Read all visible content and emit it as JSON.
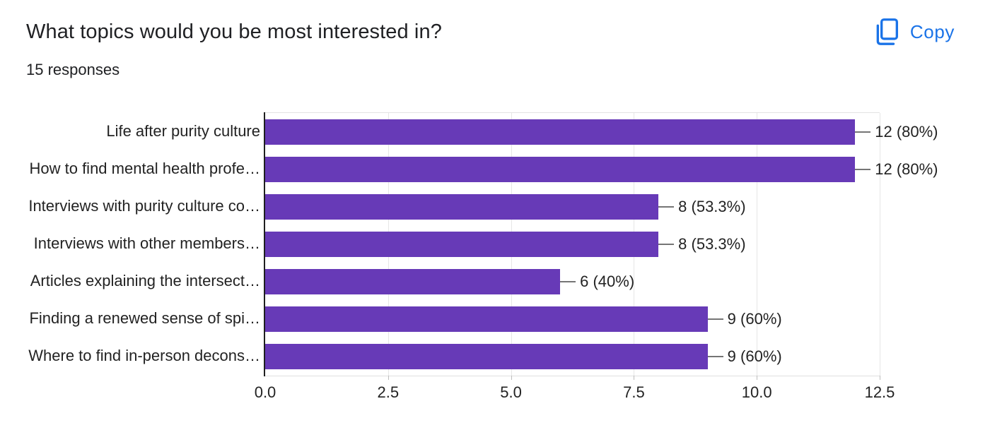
{
  "header": {
    "title": "What topics would you be most interested in?",
    "responses": "15 responses",
    "copy_label": "Copy"
  },
  "colors": {
    "bar": "#673ab7",
    "accent_blue": "#1a73e8",
    "gridline": "#e6e6e6",
    "axis_line": "#1f1f1f",
    "connector": "#757575",
    "text": "#202124"
  },
  "chart_data": {
    "type": "bar",
    "orientation": "horizontal",
    "title": "What topics would you be most interested in?",
    "categories": [
      "Life after purity culture",
      "How to find mental health profe…",
      "Interviews with purity culture co…",
      "Interviews with other members…",
      "Articles explaining the intersect…",
      "Finding a renewed sense of spi…",
      "Where to find in-person decons…"
    ],
    "values": [
      12,
      12,
      8,
      8,
      6,
      9,
      9
    ],
    "value_labels": [
      "12 (80%)",
      "12 (80%)",
      "8 (53.3%)",
      "8 (53.3%)",
      "6 (40%)",
      "9 (60%)",
      "9 (60%)"
    ],
    "x_ticks": [
      "0.0",
      "2.5",
      "5.0",
      "7.5",
      "10.0",
      "12.5"
    ],
    "xlim": [
      0,
      12.5
    ],
    "grid": true,
    "legend": false
  }
}
